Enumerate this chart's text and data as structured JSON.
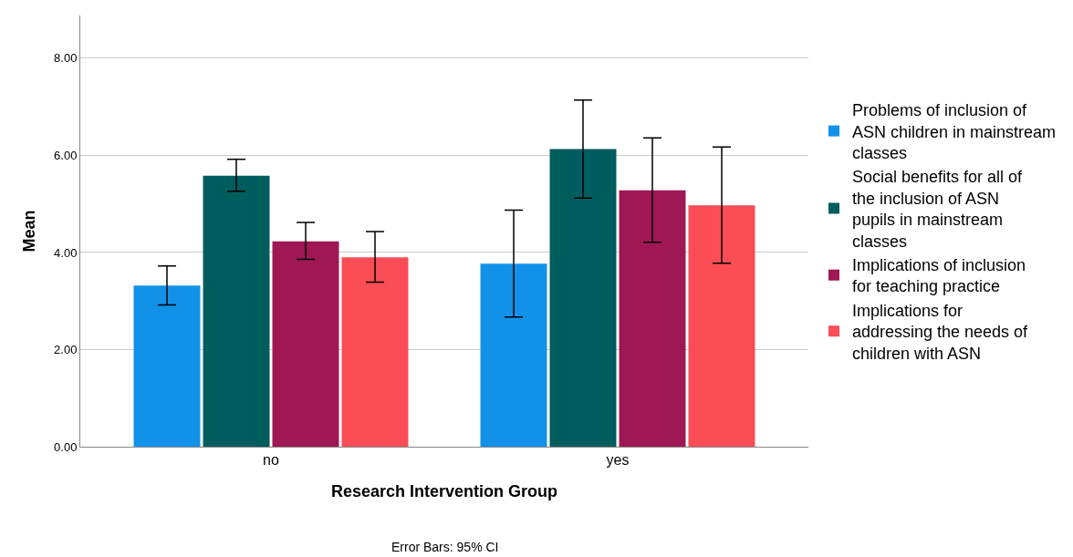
{
  "chart_data": {
    "type": "bar",
    "xlabel": "Research Intervention Group",
    "ylabel": "Mean",
    "categories": [
      "no",
      "yes"
    ],
    "series": [
      {
        "name": "Problems of inclusion of ASN children in mainstream classes",
        "color": "#1192e8",
        "values": [
          3.32,
          3.77
        ],
        "errors": [
          [
            2.92,
            3.72
          ],
          [
            2.67,
            4.87
          ]
        ]
      },
      {
        "name": "Social benefits for all of the inclusion of ASN pupils in mainstream classes",
        "color": "#005d5d",
        "values": [
          5.58,
          6.13
        ],
        "errors": [
          [
            5.26,
            5.92
          ],
          [
            5.12,
            7.14
          ]
        ]
      },
      {
        "name": "Implications of inclusion for teaching practice",
        "color": "#9f1853",
        "values": [
          4.23,
          5.28
        ],
        "errors": [
          [
            3.86,
            4.62
          ],
          [
            4.21,
            6.36
          ]
        ]
      },
      {
        "name": "Implications for addressing the needs of children with ASN",
        "color": "#fa4d56",
        "values": [
          3.9,
          4.97
        ],
        "errors": [
          [
            3.39,
            4.43
          ],
          [
            3.78,
            6.17
          ]
        ]
      }
    ],
    "ylim": [
      0,
      8.88
    ],
    "yticks": [
      {
        "value": 0,
        "label": "0.00"
      },
      {
        "value": 2,
        "label": "2.00"
      },
      {
        "value": 4,
        "label": "4.00"
      },
      {
        "value": 6,
        "label": "6.00"
      },
      {
        "value": 8,
        "label": "8.00"
      }
    ],
    "grid": "y",
    "legend": "right",
    "annotations": [
      "Error Bars: 95% CI"
    ]
  }
}
